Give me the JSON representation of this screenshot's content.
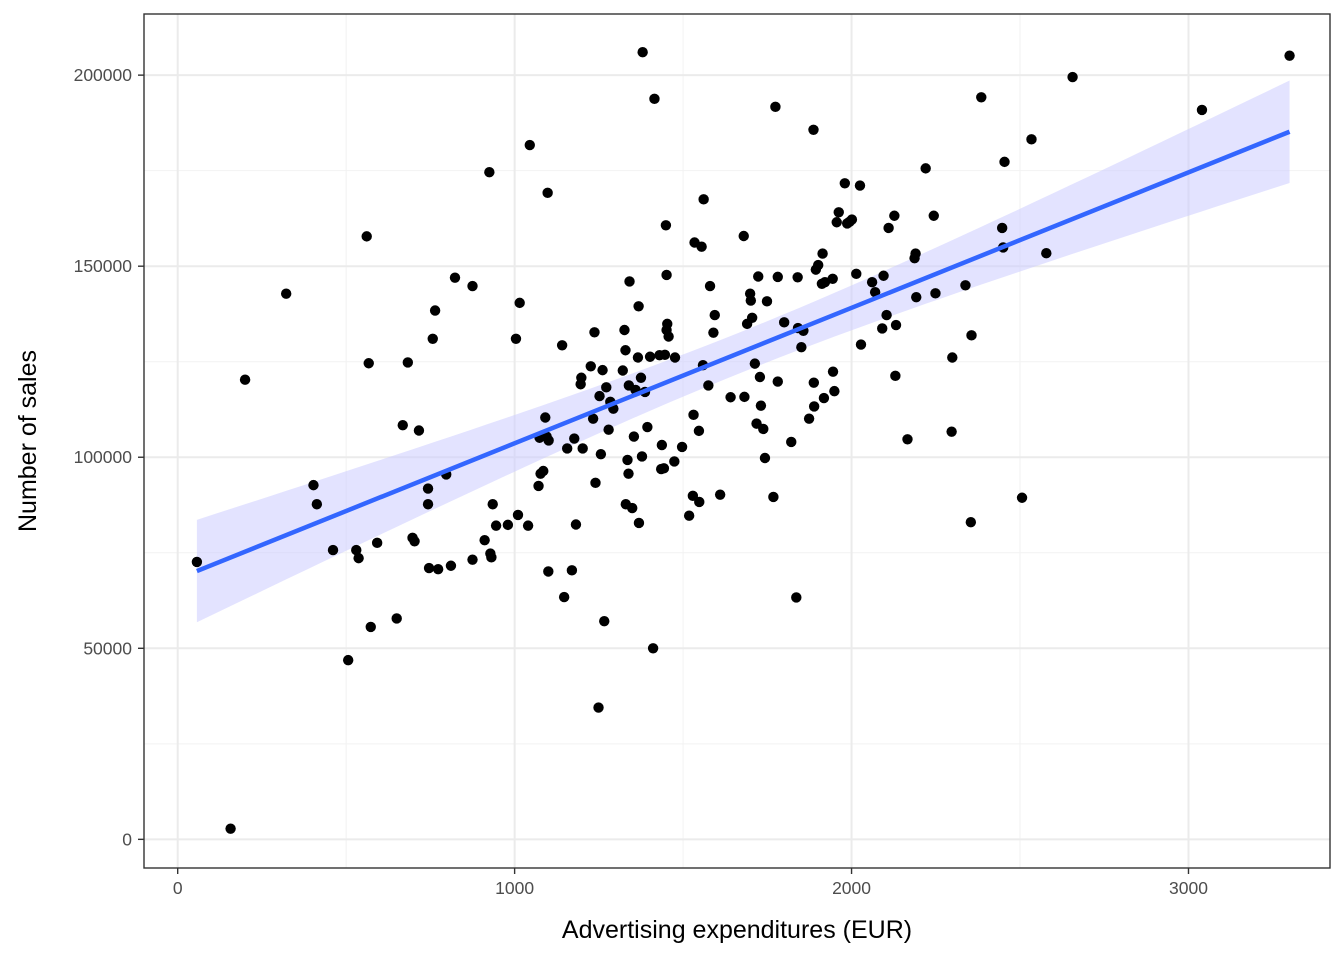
{
  "chart_data": {
    "type": "scatter",
    "title": "",
    "xlabel": "Advertising expenditures (EUR)",
    "ylabel": "Number of sales",
    "xlim": [
      -100,
      3420
    ],
    "ylim": [
      -7500,
      216000
    ],
    "x_ticks": [
      0,
      1000,
      2000,
      3000
    ],
    "x_tick_labels": [
      "0",
      "1000",
      "2000",
      "3000"
    ],
    "y_ticks": [
      0,
      50000,
      100000,
      150000,
      200000
    ],
    "y_tick_labels": [
      "0",
      "50000",
      "100000",
      "150000",
      "200000"
    ],
    "grid": true,
    "legend": "none",
    "colors": {
      "points": "#000000",
      "fit_line": "#3366ff",
      "confidence_band": "#ccccff"
    },
    "fit": {
      "method": "linear",
      "x_range": [
        57,
        3300
      ],
      "intercept": 68200,
      "slope": 35.45,
      "ci_at_min": [
        59500,
        80900
      ],
      "ci_at_max": [
        171600,
        198400
      ]
    },
    "points": [
      [
        57,
        72600
      ],
      [
        157,
        2800
      ],
      [
        200,
        120300
      ],
      [
        322,
        142800
      ],
      [
        403,
        92700
      ],
      [
        413,
        87700
      ],
      [
        461,
        75700
      ],
      [
        506,
        46900
      ],
      [
        530,
        75700
      ],
      [
        537,
        73600
      ],
      [
        561,
        157800
      ],
      [
        567,
        124600
      ],
      [
        573,
        55600
      ],
      [
        592,
        77600
      ],
      [
        650,
        57800
      ],
      [
        668,
        108400
      ],
      [
        683,
        124800
      ],
      [
        697,
        78900
      ],
      [
        703,
        78000
      ],
      [
        716,
        107000
      ],
      [
        743,
        91800
      ],
      [
        743,
        87700
      ],
      [
        746,
        71000
      ],
      [
        757,
        131000
      ],
      [
        764,
        138400
      ],
      [
        773,
        70700
      ],
      [
        797,
        95500
      ],
      [
        811,
        71600
      ],
      [
        823,
        147000
      ],
      [
        875,
        144800
      ],
      [
        875,
        73200
      ],
      [
        911,
        78300
      ],
      [
        925,
        174600
      ],
      [
        928,
        74800
      ],
      [
        931,
        73800
      ],
      [
        935,
        87700
      ],
      [
        945,
        82100
      ],
      [
        980,
        82300
      ],
      [
        1004,
        131000
      ],
      [
        1010,
        84900
      ],
      [
        1015,
        140400
      ],
      [
        1040,
        82100
      ],
      [
        1045,
        181700
      ],
      [
        1071,
        92500
      ],
      [
        1074,
        105100
      ],
      [
        1077,
        95700
      ],
      [
        1085,
        96400
      ],
      [
        1091,
        110400
      ],
      [
        1095,
        105400
      ],
      [
        1098,
        169200
      ],
      [
        1100,
        70100
      ],
      [
        1101,
        104400
      ],
      [
        1141,
        129300
      ],
      [
        1147,
        63400
      ],
      [
        1156,
        102300
      ],
      [
        1170,
        70400
      ],
      [
        1177,
        104900
      ],
      [
        1182,
        82400
      ],
      [
        1196,
        119100
      ],
      [
        1198,
        120800
      ],
      [
        1202,
        102300
      ],
      [
        1226,
        123800
      ],
      [
        1233,
        110100
      ],
      [
        1237,
        132700
      ],
      [
        1240,
        93300
      ],
      [
        1249,
        34500
      ],
      [
        1252,
        116000
      ],
      [
        1256,
        100800
      ],
      [
        1261,
        122800
      ],
      [
        1266,
        57100
      ],
      [
        1272,
        118300
      ],
      [
        1279,
        107200
      ],
      [
        1284,
        114500
      ],
      [
        1293,
        112700
      ],
      [
        1321,
        122700
      ],
      [
        1326,
        133300
      ],
      [
        1329,
        128000
      ],
      [
        1330,
        87700
      ],
      [
        1335,
        99300
      ],
      [
        1338,
        95700
      ],
      [
        1339,
        118800
      ],
      [
        1341,
        146000
      ],
      [
        1349,
        86700
      ],
      [
        1354,
        105400
      ],
      [
        1359,
        117600
      ],
      [
        1369,
        82800
      ],
      [
        1366,
        126100
      ],
      [
        1368,
        139500
      ],
      [
        1375,
        120800
      ],
      [
        1378,
        100200
      ],
      [
        1380,
        206000
      ],
      [
        1387,
        117100
      ],
      [
        1394,
        107900
      ],
      [
        1402,
        126300
      ],
      [
        1411,
        50000
      ],
      [
        1415,
        193800
      ],
      [
        1430,
        126700
      ],
      [
        1435,
        96900
      ],
      [
        1437,
        103200
      ],
      [
        1443,
        97100
      ],
      [
        1446,
        126800
      ],
      [
        1449,
        160700
      ],
      [
        1451,
        133300
      ],
      [
        1451,
        147700
      ],
      [
        1453,
        134900
      ],
      [
        1457,
        131600
      ],
      [
        1474,
        98900
      ],
      [
        1476,
        126100
      ],
      [
        1497,
        102700
      ],
      [
        1518,
        84700
      ],
      [
        1529,
        89900
      ],
      [
        1531,
        111100
      ],
      [
        1534,
        156200
      ],
      [
        1547,
        106900
      ],
      [
        1548,
        88300
      ],
      [
        1555,
        155100
      ],
      [
        1559,
        124100
      ],
      [
        1561,
        167500
      ],
      [
        1575,
        118800
      ],
      [
        1580,
        144800
      ],
      [
        1590,
        132600
      ],
      [
        1594,
        137200
      ],
      [
        1610,
        90200
      ],
      [
        1641,
        115700
      ],
      [
        1680,
        157900
      ],
      [
        1682,
        115800
      ],
      [
        1690,
        134900
      ],
      [
        1699,
        142800
      ],
      [
        1701,
        141000
      ],
      [
        1705,
        136500
      ],
      [
        1713,
        124500
      ],
      [
        1718,
        108800
      ],
      [
        1723,
        147300
      ],
      [
        1728,
        121000
      ],
      [
        1731,
        113500
      ],
      [
        1738,
        107400
      ],
      [
        1743,
        99800
      ],
      [
        1749,
        140800
      ],
      [
        1768,
        89600
      ],
      [
        1774,
        191700
      ],
      [
        1781,
        147200
      ],
      [
        1781,
        119800
      ],
      [
        1800,
        135300
      ],
      [
        1821,
        104000
      ],
      [
        1836,
        63300
      ],
      [
        1840,
        147100
      ],
      [
        1841,
        133800
      ],
      [
        1851,
        128800
      ],
      [
        1857,
        133100
      ],
      [
        1874,
        110100
      ],
      [
        1887,
        185700
      ],
      [
        1889,
        113300
      ],
      [
        1888,
        119500
      ],
      [
        1894,
        149100
      ],
      [
        1901,
        150300
      ],
      [
        1912,
        145400
      ],
      [
        1914,
        153300
      ],
      [
        1918,
        115500
      ],
      [
        1921,
        145800
      ],
      [
        1944,
        146700
      ],
      [
        1945,
        122400
      ],
      [
        1949,
        117300
      ],
      [
        1956,
        161500
      ],
      [
        1962,
        164100
      ],
      [
        1980,
        171700
      ],
      [
        1987,
        161200
      ],
      [
        1994,
        161600
      ],
      [
        2001,
        162200
      ],
      [
        2014,
        148000
      ],
      [
        2025,
        171100
      ],
      [
        2028,
        129500
      ],
      [
        2061,
        145800
      ],
      [
        2070,
        143200
      ],
      [
        2091,
        133700
      ],
      [
        2095,
        147500
      ],
      [
        2104,
        137200
      ],
      [
        2110,
        160000
      ],
      [
        2127,
        163200
      ],
      [
        2130,
        121300
      ],
      [
        2132,
        134600
      ],
      [
        2166,
        104700
      ],
      [
        2187,
        152100
      ],
      [
        2190,
        153300
      ],
      [
        2192,
        141900
      ],
      [
        2220,
        175600
      ],
      [
        2244,
        163200
      ],
      [
        2249,
        142900
      ],
      [
        2297,
        106700
      ],
      [
        2299,
        126100
      ],
      [
        2338,
        145000
      ],
      [
        2354,
        83000
      ],
      [
        2356,
        131900
      ],
      [
        2385,
        194200
      ],
      [
        2447,
        160000
      ],
      [
        2450,
        154900
      ],
      [
        2454,
        177300
      ],
      [
        2506,
        89400
      ],
      [
        2534,
        183200
      ],
      [
        2578,
        153400
      ],
      [
        2656,
        199500
      ],
      [
        3040,
        190900
      ],
      [
        3300,
        205100
      ]
    ]
  }
}
